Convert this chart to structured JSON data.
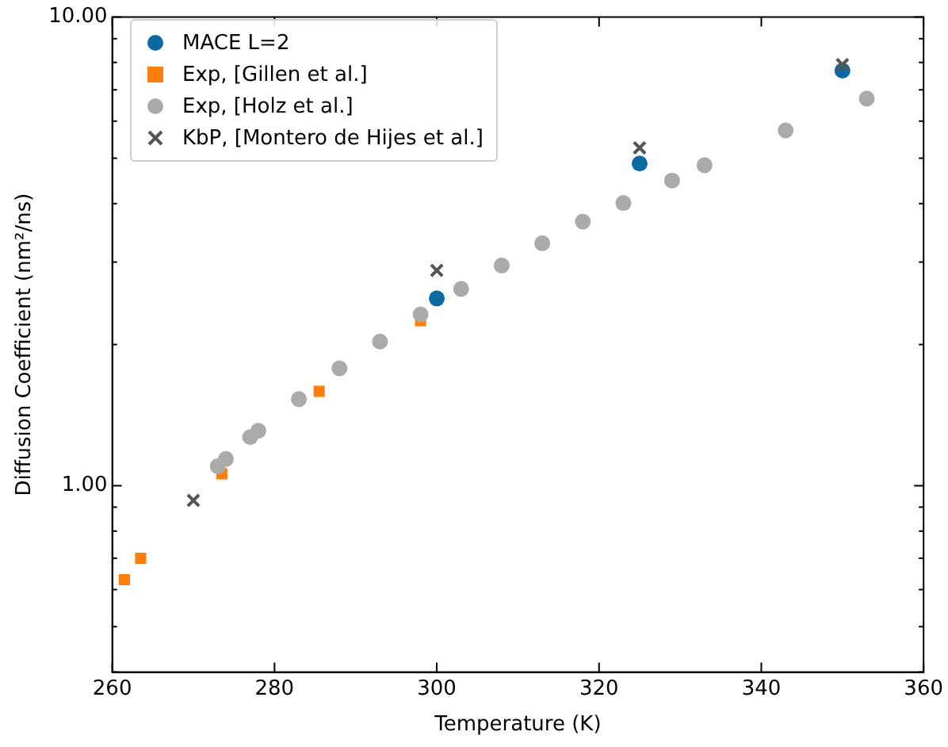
{
  "chart_data": {
    "type": "scatter",
    "xlabel": "Temperature (K)",
    "ylabel": "Diffusion Coefficient (nm²/ns)",
    "log": "y",
    "xlim": [
      260,
      360
    ],
    "xticks": [
      260,
      280,
      300,
      320,
      340,
      360
    ],
    "ylim": [
      0.4,
      10
    ],
    "yticks": [
      {
        "value": 0.4,
        "label": null
      },
      {
        "value": 0.5,
        "label": null
      },
      {
        "value": 0.6,
        "label": null
      },
      {
        "value": 0.7,
        "label": null
      },
      {
        "value": 0.8,
        "label": null
      },
      {
        "value": 0.9,
        "label": null
      },
      {
        "value": 1,
        "label": "1.00"
      },
      {
        "value": 2,
        "label": null
      },
      {
        "value": 3,
        "label": null
      },
      {
        "value": 4,
        "label": null
      },
      {
        "value": 5,
        "label": null
      },
      {
        "value": 6,
        "label": null
      },
      {
        "value": 7,
        "label": null
      },
      {
        "value": 8,
        "label": null
      },
      {
        "value": 9,
        "label": null
      },
      {
        "value": 10,
        "label": "10.00"
      }
    ],
    "legend": "top left",
    "grid": false,
    "series": [
      {
        "name": "MACE L=2",
        "color": "#0b6aa2",
        "marker": "circle",
        "x": [
          300,
          325,
          350
        ],
        "values": [
          2.51,
          4.87,
          7.69
        ]
      },
      {
        "name": "Exp, [Gillen et al.]",
        "color": "#ff7f0e",
        "marker": "square",
        "x": [
          261.5,
          263.5,
          273.5,
          285.5,
          298
        ],
        "values": [
          0.63,
          0.7,
          1.06,
          1.59,
          2.25
        ]
      },
      {
        "name": "Exp, [Holz et al.]",
        "color": "#aaaaaa",
        "marker": "circle",
        "x": [
          273,
          274,
          277,
          278,
          283,
          288,
          293,
          298,
          303,
          308,
          313,
          318,
          323,
          329,
          333,
          343,
          353
        ],
        "values": [
          1.1,
          1.14,
          1.27,
          1.31,
          1.53,
          1.78,
          2.03,
          2.32,
          2.63,
          2.95,
          3.29,
          3.66,
          4.01,
          4.48,
          4.83,
          5.73,
          6.7
        ]
      },
      {
        "name": "KbP, [Montero de Hijes et al.]",
        "color": "#555555",
        "marker": "cross",
        "x": [
          270,
          300,
          325,
          350
        ],
        "values": [
          0.93,
          2.88,
          5.26,
          7.92
        ]
      }
    ]
  }
}
